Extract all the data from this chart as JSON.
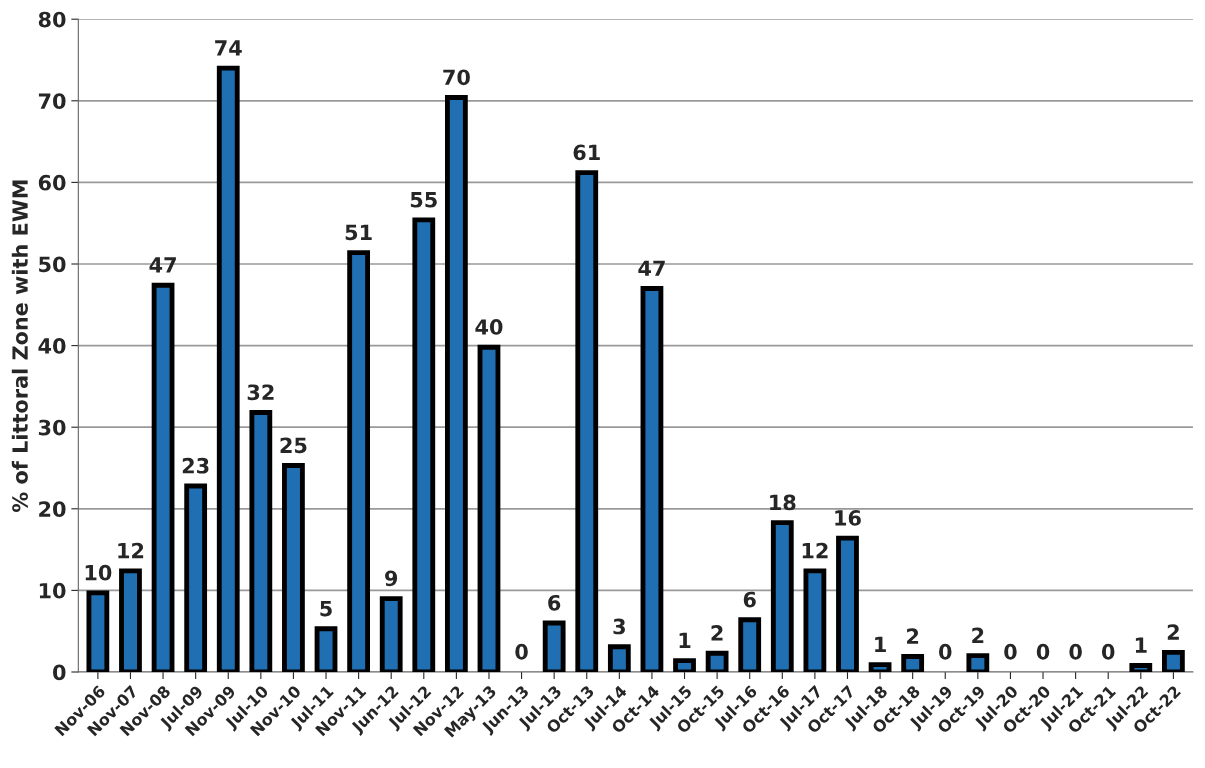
{
  "chart_data": {
    "type": "bar",
    "ylabel": "% of Littoral Zone with EWM",
    "categories": [
      "Nov-06",
      "Nov-07",
      "Nov-08",
      "Jul-09",
      "Nov-09",
      "Jul-10",
      "Nov-10",
      "Jul-11",
      "Nov-11",
      "Jun-12",
      "Jul-12",
      "Nov-12",
      "May-13",
      "Jun-13",
      "Jul-13",
      "Oct-13",
      "Jul-14",
      "Oct-14",
      "Jul-15",
      "Oct-15",
      "Jul-16",
      "Oct-16",
      "Jul-17",
      "Oct-17",
      "Jul-18",
      "Oct-18",
      "Jul-19",
      "Oct-19",
      "Jul-20",
      "Oct-20",
      "Jul-21",
      "Oct-21",
      "Jul-22",
      "Oct-22"
    ],
    "values": [
      9.7,
      12.4,
      47.4,
      22.8,
      74,
      31.8,
      25.3,
      5.3,
      51.4,
      9,
      55.4,
      70.4,
      39.8,
      0,
      6,
      61.2,
      3.1,
      47,
      1.4,
      2.3,
      6.4,
      18.3,
      12.4,
      16.4,
      0.9,
      1.9,
      0,
      2,
      0,
      0,
      0,
      0,
      0.8,
      2.4
    ],
    "value_labels": [
      "10",
      "12",
      "47",
      "23",
      "74",
      "32",
      "25",
      "5",
      "51",
      "9",
      "55",
      "70",
      "40",
      "0",
      "6",
      "61",
      "3",
      "47",
      "1",
      "2",
      "6",
      "18",
      "12",
      "16",
      "1",
      "2",
      "0",
      "2",
      "0",
      "0",
      "0",
      "0",
      "1",
      "2"
    ],
    "color": "#1f6fb2",
    "ylim": [
      0,
      80
    ],
    "yticks": [
      0,
      10,
      20,
      30,
      40,
      50,
      60,
      70,
      80
    ],
    "grid": "y"
  }
}
